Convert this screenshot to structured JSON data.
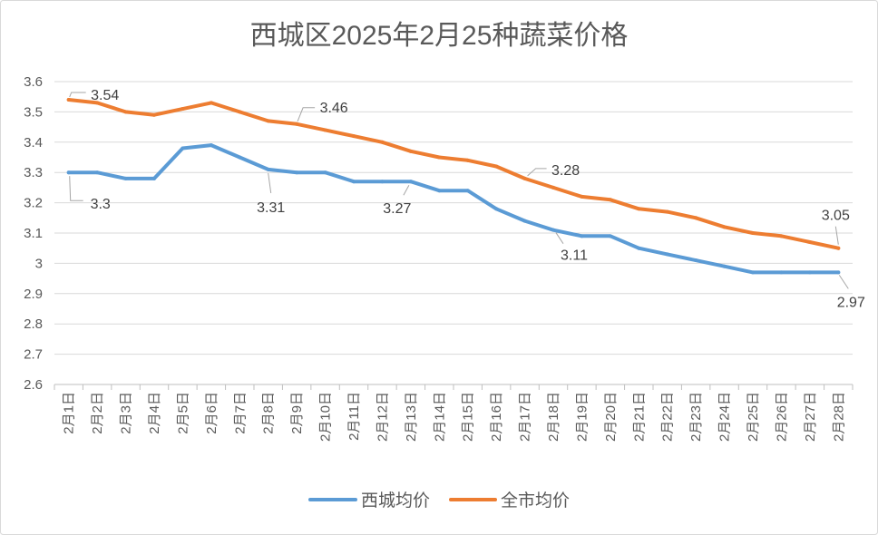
{
  "chart_data": {
    "type": "line",
    "title": "西城区2025年2月25种蔬菜价格",
    "categories": [
      "2月1日",
      "2月2日",
      "2月3日",
      "2月4日",
      "2月5日",
      "2月6日",
      "2月7日",
      "2月8日",
      "2月9日",
      "2月10日",
      "2月11日",
      "2月12日",
      "2月13日",
      "2月14日",
      "2月15日",
      "2月16日",
      "2月17日",
      "2月18日",
      "2月19日",
      "2月20日",
      "2月21日",
      "2月22日",
      "2月23日",
      "2月24日",
      "2月25日",
      "2月26日",
      "2月27日",
      "2月28日"
    ],
    "series": [
      {
        "name": "西城均价",
        "color": "#5B9BD5",
        "values": [
          3.3,
          3.3,
          3.28,
          3.28,
          3.38,
          3.39,
          3.35,
          3.31,
          3.3,
          3.3,
          3.27,
          3.27,
          3.27,
          3.24,
          3.24,
          3.18,
          3.14,
          3.11,
          3.09,
          3.09,
          3.05,
          3.03,
          3.01,
          2.99,
          2.97,
          2.97,
          2.97,
          2.97
        ],
        "labeled_points": [
          0,
          7,
          12,
          17,
          27
        ]
      },
      {
        "name": "全市均价",
        "color": "#ED7D31",
        "values": [
          3.54,
          3.53,
          3.5,
          3.49,
          3.51,
          3.53,
          3.5,
          3.47,
          3.46,
          3.44,
          3.42,
          3.4,
          3.37,
          3.35,
          3.34,
          3.32,
          3.28,
          3.25,
          3.22,
          3.21,
          3.18,
          3.17,
          3.15,
          3.12,
          3.1,
          3.09,
          3.07,
          3.05
        ],
        "labeled_points": [
          0,
          8,
          16,
          27
        ]
      }
    ],
    "ylim": [
      2.6,
      3.6
    ],
    "yticks": [
      2.6,
      2.7,
      2.8,
      2.9,
      3,
      3.1,
      3.2,
      3.3,
      3.4,
      3.5,
      3.6
    ],
    "grid": "horizontal",
    "legend": "bottom"
  }
}
